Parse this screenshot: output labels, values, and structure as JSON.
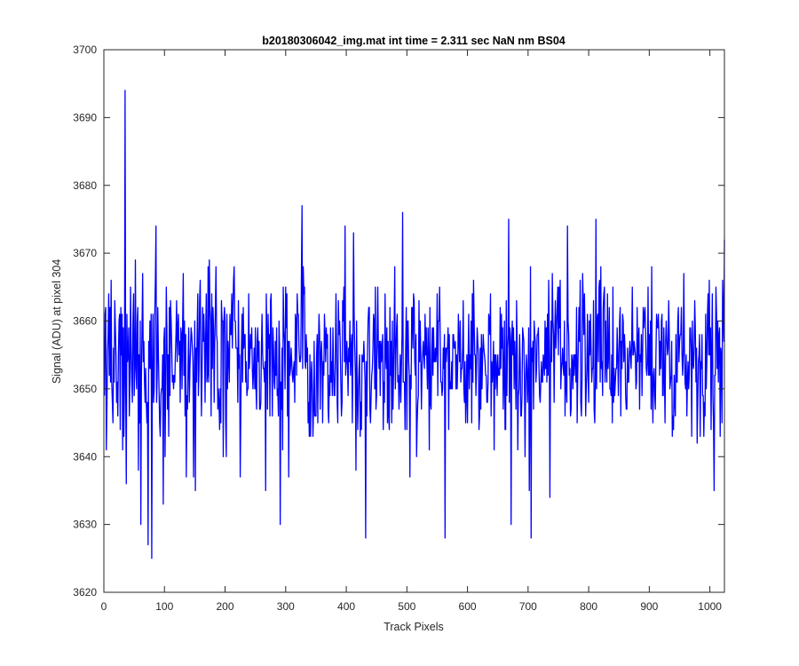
{
  "chart_data": {
    "type": "line",
    "title": "b20180306042_img.mat int time = 2.311 sec  NaN nm BS04",
    "xlabel": "Track Pixels",
    "ylabel": "Signal (ADU) at pixel 304",
    "xlim": [
      0,
      1024
    ],
    "ylim": [
      3620,
      3700
    ],
    "xticks": [
      0,
      100,
      200,
      300,
      400,
      500,
      600,
      700,
      800,
      900,
      1000
    ],
    "yticks": [
      3620,
      3630,
      3640,
      3650,
      3660,
      3670,
      3680,
      3690,
      3700
    ],
    "grid": false,
    "legend": "none",
    "series": [
      {
        "color": "#0000ff",
        "x_start": 1,
        "x_step": 1,
        "mean": 3655,
        "noise_amplitude": 12,
        "noise_seed": 42,
        "points": [
          [
            1,
            3649
          ],
          [
            4,
            3641
          ],
          [
            8,
            3664
          ],
          [
            15,
            3645
          ],
          [
            21,
            3648
          ],
          [
            30,
            3661
          ],
          [
            33,
            3643
          ],
          [
            35,
            3694
          ],
          [
            37,
            3636
          ],
          [
            40,
            3655
          ],
          [
            46,
            3651
          ],
          [
            52,
            3669
          ],
          [
            57,
            3638
          ],
          [
            61,
            3630
          ],
          [
            64,
            3667
          ],
          [
            70,
            3648
          ],
          [
            73,
            3627
          ],
          [
            76,
            3660
          ],
          [
            79,
            3625
          ],
          [
            82,
            3648
          ],
          [
            86,
            3674
          ],
          [
            92,
            3645
          ],
          [
            98,
            3633
          ],
          [
            103,
            3665
          ],
          [
            107,
            3643
          ],
          [
            111,
            3660
          ],
          [
            136,
            3637
          ],
          [
            148,
            3637
          ],
          [
            151,
            3635
          ],
          [
            155,
            3664
          ],
          [
            174,
            3669
          ],
          [
            185,
            3668
          ],
          [
            193,
            3645
          ],
          [
            197,
            3640
          ],
          [
            202,
            3640
          ],
          [
            215,
            3668
          ],
          [
            218,
            3656
          ],
          [
            225,
            3637
          ],
          [
            234,
            3651
          ],
          [
            246,
            3650
          ],
          [
            251,
            3650
          ],
          [
            267,
            3635
          ],
          [
            285,
            3659
          ],
          [
            291,
            3630
          ],
          [
            303,
            3646
          ],
          [
            305,
            3637
          ],
          [
            327,
            3677
          ],
          [
            350,
            3646
          ],
          [
            372,
            3652
          ],
          [
            387,
            3663
          ],
          [
            398,
            3674
          ],
          [
            412,
            3673
          ],
          [
            416,
            3638
          ],
          [
            419,
            3644
          ],
          [
            423,
            3643
          ],
          [
            425,
            3644
          ],
          [
            432,
            3628
          ],
          [
            434,
            3646
          ],
          [
            450,
            3649
          ],
          [
            473,
            3652
          ],
          [
            486,
            3652
          ],
          [
            493,
            3676
          ],
          [
            502,
            3660
          ],
          [
            505,
            3637
          ],
          [
            516,
            3640
          ],
          [
            522,
            3660
          ],
          [
            537,
            3641
          ],
          [
            552,
            3660
          ],
          [
            563,
            3628
          ],
          [
            569,
            3644
          ],
          [
            575,
            3650
          ],
          [
            600,
            3645
          ],
          [
            624,
            3650
          ],
          [
            640,
            3654
          ],
          [
            644,
            3641
          ],
          [
            650,
            3655
          ],
          [
            660,
            3652
          ],
          [
            668,
            3675
          ],
          [
            672,
            3630
          ],
          [
            683,
            3641
          ],
          [
            695,
            3640
          ],
          [
            702,
            3635
          ],
          [
            705,
            3628
          ],
          [
            718,
            3653
          ],
          [
            736,
            3634
          ],
          [
            749,
            3665
          ],
          [
            765,
            3674
          ],
          [
            779,
            3651
          ],
          [
            797,
            3653
          ],
          [
            808,
            3663
          ],
          [
            812,
            3675
          ],
          [
            826,
            3665
          ],
          [
            845,
            3653
          ],
          [
            867,
            3655
          ],
          [
            875,
            3657
          ],
          [
            893,
            3662
          ],
          [
            904,
            3668
          ],
          [
            920,
            3660
          ],
          [
            935,
            3651
          ],
          [
            957,
            3667
          ],
          [
            967,
            3659
          ],
          [
            984,
            3643
          ],
          [
            997,
            3664
          ],
          [
            1000,
            3655
          ],
          [
            1007,
            3635
          ],
          [
            1015,
            3658
          ],
          [
            1020,
            3645
          ],
          [
            1024,
            3672
          ]
        ]
      }
    ]
  }
}
